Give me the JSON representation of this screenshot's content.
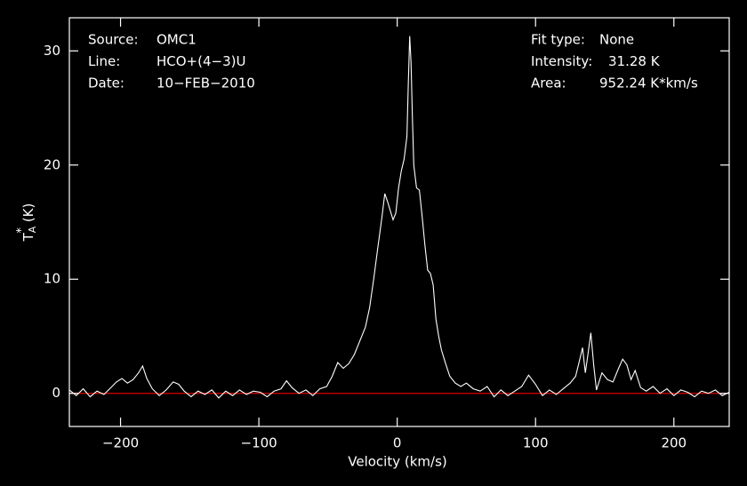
{
  "chart_data": {
    "type": "line",
    "x_label": "Velocity (km/s)",
    "y_label": {
      "symbol": "T",
      "sub": "A",
      "sup": "*",
      "unit": "(K)"
    },
    "info_left": [
      {
        "label": "Source:",
        "value": "OMC1"
      },
      {
        "label": "Line:",
        "value": "HCO+(4−3)U"
      },
      {
        "label": "Date:",
        "value": "10−FEB−2010"
      }
    ],
    "info_right": [
      {
        "label": "Fit type:",
        "value": "None"
      },
      {
        "label": "Intensity:",
        "value": "31.28 K"
      },
      {
        "label": "Area:",
        "value": "952.24 K*km/s"
      }
    ],
    "color": "#ffffff",
    "hline": {
      "value": 0,
      "color": "#e00000"
    },
    "xlim": [
      -237,
      240
    ],
    "ylim": [
      -2.9,
      32.9
    ],
    "xticks": [
      {
        "value": -200,
        "label": "−200"
      },
      {
        "value": -100,
        "label": "−100"
      },
      0,
      100,
      200
    ],
    "yticks": [
      0,
      10,
      20,
      30
    ],
    "x": [
      -237,
      -232,
      -227,
      -222,
      -217,
      -212,
      -207,
      -203,
      -199,
      -195,
      -191,
      -187,
      -184,
      -181,
      -177,
      -172,
      -167,
      -162,
      -158,
      -154,
      -149,
      -144,
      -139,
      -134,
      -129,
      -124,
      -119,
      -114,
      -109,
      -104,
      -99,
      -94,
      -89,
      -84,
      -80,
      -76,
      -71,
      -66,
      -61,
      -56,
      -51,
      -47,
      -43,
      -39,
      -35,
      -31,
      -27,
      -23,
      -20,
      -17,
      -14,
      -11,
      -9,
      -7,
      -5,
      -3,
      -1,
      1,
      3,
      5,
      7,
      8,
      9,
      10,
      11,
      12,
      14,
      16,
      18,
      20,
      22,
      24,
      26,
      28,
      30,
      32,
      35,
      38,
      42,
      46,
      50,
      55,
      60,
      65,
      70,
      75,
      80,
      85,
      90,
      95,
      100,
      105,
      110,
      115,
      120,
      125,
      129,
      132,
      134,
      136,
      138,
      140,
      142,
      144,
      148,
      152,
      156,
      160,
      163,
      166,
      169,
      172,
      176,
      180,
      185,
      190,
      195,
      200,
      205,
      210,
      215,
      220,
      225,
      230,
      235,
      240
    ],
    "values": [
      0.3,
      -0.2,
      0.4,
      -0.3,
      0.2,
      -0.1,
      0.5,
      1.0,
      1.3,
      0.9,
      1.2,
      1.8,
      2.4,
      1.3,
      0.4,
      -0.2,
      0.3,
      1.0,
      0.8,
      0.2,
      -0.3,
      0.2,
      -0.1,
      0.3,
      -0.4,
      0.2,
      -0.2,
      0.3,
      -0.1,
      0.2,
      0.1,
      -0.3,
      0.2,
      0.4,
      1.1,
      0.5,
      0.0,
      0.3,
      -0.2,
      0.4,
      0.6,
      1.5,
      2.7,
      2.2,
      2.6,
      3.4,
      4.6,
      5.8,
      7.5,
      10.0,
      12.8,
      15.5,
      17.5,
      16.8,
      16.0,
      15.2,
      15.8,
      18.0,
      19.5,
      20.5,
      22.5,
      27,
      31.3,
      29,
      24,
      20,
      18,
      17.8,
      15.5,
      13,
      10.8,
      10.5,
      9.5,
      6.5,
      5.0,
      3.8,
      2.6,
      1.5,
      0.9,
      0.6,
      0.9,
      0.4,
      0.2,
      0.6,
      -0.3,
      0.3,
      -0.2,
      0.2,
      0.6,
      1.6,
      0.8,
      -0.2,
      0.3,
      -0.1,
      0.4,
      0.9,
      1.5,
      3.0,
      4.0,
      1.8,
      3.5,
      5.3,
      2.5,
      0.3,
      1.8,
      1.2,
      1.0,
      2.2,
      3.0,
      2.5,
      1.2,
      2.0,
      0.5,
      0.2,
      0.6,
      0.0,
      0.4,
      -0.2,
      0.3,
      0.1,
      -0.3,
      0.2,
      0.0,
      0.3,
      -0.2,
      0.1
    ]
  }
}
